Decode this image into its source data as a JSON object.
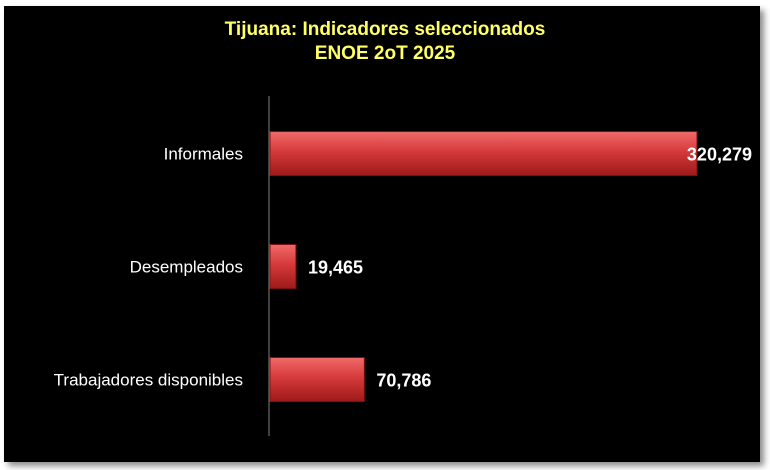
{
  "chart_data": {
    "type": "bar",
    "orientation": "horizontal",
    "title": "Tijuana: Indicadores seleccionados",
    "subtitle": "ENOE 2oT 2025",
    "categories": [
      "Informales",
      "Desempleados",
      "Trabajadores disponibles"
    ],
    "values": [
      320279,
      19465,
      70786
    ],
    "value_labels": [
      "320,279",
      "19,465",
      "70,786"
    ],
    "xlabel": "",
    "ylabel": "",
    "xlim": [
      0,
      320279
    ],
    "grid": false,
    "legend": "none",
    "colors": {
      "background": "#000000",
      "bar": "#c62828",
      "bar_highlight": "#f06a6a",
      "title": "#ffff66",
      "text": "#ffffff"
    }
  }
}
